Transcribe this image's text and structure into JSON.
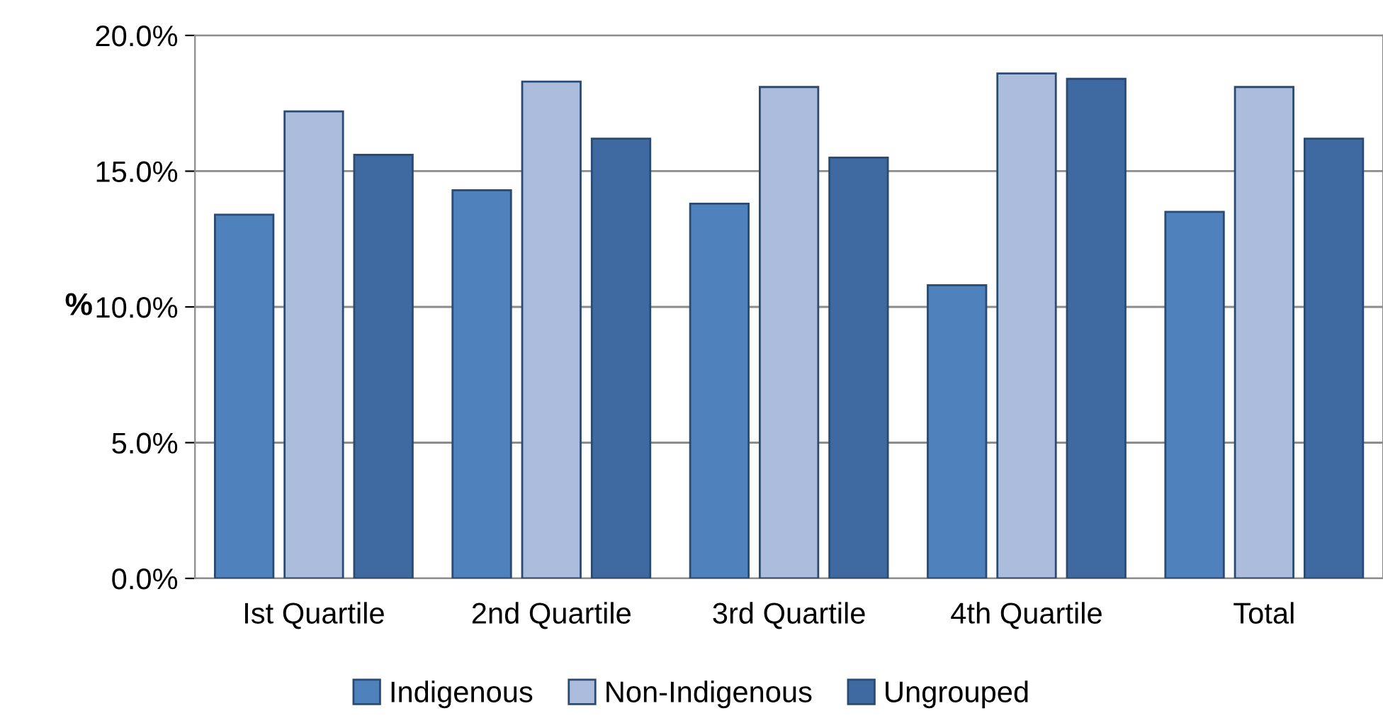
{
  "chart_data": {
    "type": "bar",
    "ylabel": "%",
    "categories": [
      "Ist Quartile",
      "2nd Quartile",
      "3rd Quartile",
      "4th Quartile",
      "Total"
    ],
    "series": [
      {
        "name": "Indigenous",
        "color": "#4f81bd",
        "values": [
          13.4,
          14.3,
          13.8,
          10.8,
          13.5
        ]
      },
      {
        "name": "Non-Indigenous",
        "color": "#abbcdd",
        "values": [
          17.2,
          18.3,
          18.1,
          18.6,
          18.1
        ]
      },
      {
        "name": "Ungrouped",
        "color": "#3e6aa1",
        "values": [
          15.6,
          16.2,
          15.5,
          18.4,
          16.2
        ]
      }
    ],
    "ylim": [
      0,
      20
    ],
    "yticks": [
      {
        "value": 0,
        "label": "0.0%"
      },
      {
        "value": 5,
        "label": "5.0%"
      },
      {
        "value": 10,
        "label": "10.0%"
      },
      {
        "value": 15,
        "label": "15.0%"
      },
      {
        "value": 20,
        "label": "20.0%"
      }
    ],
    "grid": "y",
    "legend": "bottom"
  }
}
